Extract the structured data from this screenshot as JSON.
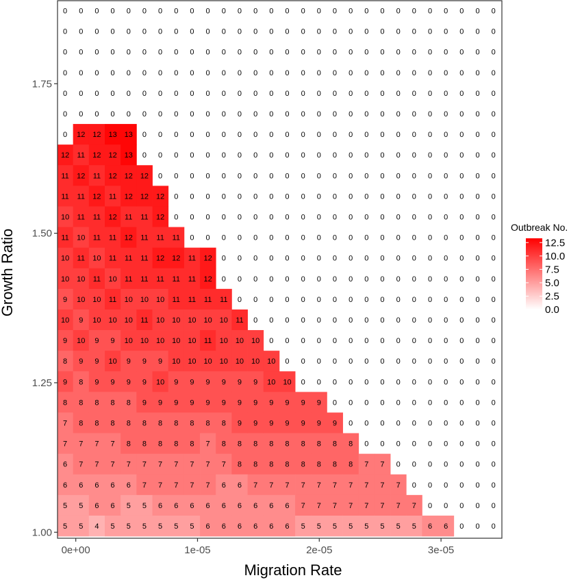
{
  "chart_data": {
    "type": "heatmap",
    "xlabel": "Migration Rate",
    "ylabel": "Growth Ratio",
    "x_ticks": [
      {
        "value": 0,
        "label": "0e+00"
      },
      {
        "value": 1e-05,
        "label": "1e-05"
      },
      {
        "value": 2e-05,
        "label": "2e-05"
      },
      {
        "value": 3e-05,
        "label": "3e-05"
      }
    ],
    "y_ticks": [
      {
        "value": 1.0,
        "label": "1.00"
      },
      {
        "value": 1.25,
        "label": "1.25"
      },
      {
        "value": 1.5,
        "label": "1.50"
      },
      {
        "value": 1.75,
        "label": "1.75"
      }
    ],
    "xlim": [
      -1.5e-06,
      3.5e-05
    ],
    "ylim": [
      0.99,
      1.89
    ],
    "x_values": [
      0,
      1.3e-06,
      2.6e-06,
      3.9e-06,
      5.2e-06,
      6.5e-06,
      7.8e-06,
      9.1e-06,
      1.04e-05,
      1.17e-05,
      1.3e-05,
      1.43e-05,
      1.56e-05,
      1.69e-05,
      1.82e-05,
      1.95e-05,
      2.08e-05,
      2.21e-05,
      2.34e-05,
      2.47e-05,
      2.6e-05,
      2.73e-05,
      2.86e-05,
      2.99e-05,
      3.12e-05,
      3.25e-05,
      3.38e-05,
      3.51e-05
    ],
    "y_values": [
      1.0,
      1.035,
      1.07,
      1.105,
      1.14,
      1.175,
      1.21,
      1.245,
      1.28,
      1.315,
      1.35,
      1.385,
      1.42,
      1.455,
      1.49,
      1.525,
      1.56,
      1.595,
      1.63,
      1.665,
      1.7,
      1.735,
      1.77,
      1.805,
      1.84,
      1.875
    ],
    "rows_top_to_bottom": [
      [
        0,
        0,
        0,
        0,
        0,
        0,
        0,
        0,
        0,
        0,
        0,
        0,
        0,
        0,
        0,
        0,
        0,
        0,
        0,
        0,
        0,
        0,
        0,
        0,
        0,
        0,
        0,
        0
      ],
      [
        0,
        0,
        0,
        0,
        0,
        0,
        0,
        0,
        0,
        0,
        0,
        0,
        0,
        0,
        0,
        0,
        0,
        0,
        0,
        0,
        0,
        0,
        0,
        0,
        0,
        0,
        0,
        0
      ],
      [
        0,
        0,
        0,
        0,
        0,
        0,
        0,
        0,
        0,
        0,
        0,
        0,
        0,
        0,
        0,
        0,
        0,
        0,
        0,
        0,
        0,
        0,
        0,
        0,
        0,
        0,
        0,
        0
      ],
      [
        0,
        0,
        0,
        0,
        0,
        0,
        0,
        0,
        0,
        0,
        0,
        0,
        0,
        0,
        0,
        0,
        0,
        0,
        0,
        0,
        0,
        0,
        0,
        0,
        0,
        0,
        0,
        0
      ],
      [
        0,
        0,
        0,
        0,
        0,
        0,
        0,
        0,
        0,
        0,
        0,
        0,
        0,
        0,
        0,
        0,
        0,
        0,
        0,
        0,
        0,
        0,
        0,
        0,
        0,
        0,
        0,
        0
      ],
      [
        0,
        0,
        0,
        0,
        0,
        0,
        0,
        0,
        0,
        0,
        0,
        0,
        0,
        0,
        0,
        0,
        0,
        0,
        0,
        0,
        0,
        0,
        0,
        0,
        0,
        0,
        0,
        0
      ],
      [
        0,
        12,
        12,
        13,
        13,
        0,
        0,
        0,
        0,
        0,
        0,
        0,
        0,
        0,
        0,
        0,
        0,
        0,
        0,
        0,
        0,
        0,
        0,
        0,
        0,
        0,
        0,
        0
      ],
      [
        12,
        11,
        12,
        12,
        13,
        0,
        0,
        0,
        0,
        0,
        0,
        0,
        0,
        0,
        0,
        0,
        0,
        0,
        0,
        0,
        0,
        0,
        0,
        0,
        0,
        0,
        0,
        0
      ],
      [
        11,
        12,
        11,
        12,
        12,
        12,
        0,
        0,
        0,
        0,
        0,
        0,
        0,
        0,
        0,
        0,
        0,
        0,
        0,
        0,
        0,
        0,
        0,
        0,
        0,
        0,
        0,
        0
      ],
      [
        11,
        11,
        12,
        11,
        12,
        12,
        12,
        0,
        0,
        0,
        0,
        0,
        0,
        0,
        0,
        0,
        0,
        0,
        0,
        0,
        0,
        0,
        0,
        0,
        0,
        0,
        0,
        0
      ],
      [
        10,
        11,
        11,
        12,
        11,
        11,
        12,
        0,
        0,
        0,
        0,
        0,
        0,
        0,
        0,
        0,
        0,
        0,
        0,
        0,
        0,
        0,
        0,
        0,
        0,
        0,
        0,
        0
      ],
      [
        11,
        10,
        11,
        11,
        12,
        11,
        11,
        11,
        0,
        0,
        0,
        0,
        0,
        0,
        0,
        0,
        0,
        0,
        0,
        0,
        0,
        0,
        0,
        0,
        0,
        0,
        0,
        0
      ],
      [
        10,
        11,
        10,
        11,
        11,
        11,
        12,
        12,
        11,
        12,
        0,
        0,
        0,
        0,
        0,
        0,
        0,
        0,
        0,
        0,
        0,
        0,
        0,
        0,
        0,
        0,
        0,
        0
      ],
      [
        10,
        10,
        11,
        10,
        11,
        11,
        11,
        11,
        11,
        12,
        0,
        0,
        0,
        0,
        0,
        0,
        0,
        0,
        0,
        0,
        0,
        0,
        0,
        0,
        0,
        0,
        0,
        0
      ],
      [
        9,
        10,
        10,
        11,
        10,
        10,
        10,
        11,
        11,
        11,
        11,
        0,
        0,
        0,
        0,
        0,
        0,
        0,
        0,
        0,
        0,
        0,
        0,
        0,
        0,
        0,
        0,
        0
      ],
      [
        10,
        9,
        10,
        10,
        10,
        11,
        10,
        10,
        10,
        10,
        10,
        11,
        0,
        0,
        0,
        0,
        0,
        0,
        0,
        0,
        0,
        0,
        0,
        0,
        0,
        0,
        0,
        0
      ],
      [
        9,
        10,
        9,
        9,
        10,
        10,
        10,
        10,
        10,
        11,
        10,
        10,
        10,
        0,
        0,
        0,
        0,
        0,
        0,
        0,
        0,
        0,
        0,
        0,
        0,
        0,
        0,
        0
      ],
      [
        8,
        9,
        9,
        10,
        9,
        9,
        9,
        10,
        10,
        10,
        10,
        10,
        10,
        10,
        0,
        0,
        0,
        0,
        0,
        0,
        0,
        0,
        0,
        0,
        0,
        0,
        0,
        0
      ],
      [
        9,
        8,
        9,
        9,
        9,
        9,
        10,
        9,
        9,
        9,
        9,
        9,
        9,
        10,
        10,
        0,
        0,
        0,
        0,
        0,
        0,
        0,
        0,
        0,
        0,
        0,
        0,
        0
      ],
      [
        8,
        8,
        8,
        8,
        8,
        9,
        9,
        9,
        9,
        9,
        9,
        9,
        9,
        9,
        9,
        9,
        9,
        0,
        0,
        0,
        0,
        0,
        0,
        0,
        0,
        0,
        0,
        0
      ],
      [
        7,
        8,
        8,
        8,
        8,
        8,
        8,
        8,
        8,
        8,
        8,
        9,
        9,
        9,
        9,
        9,
        9,
        9,
        0,
        0,
        0,
        0,
        0,
        0,
        0,
        0,
        0,
        0
      ],
      [
        7,
        7,
        7,
        7,
        8,
        8,
        8,
        8,
        8,
        7,
        8,
        8,
        8,
        8,
        8,
        8,
        8,
        8,
        8,
        0,
        0,
        0,
        0,
        0,
        0,
        0,
        0,
        0
      ],
      [
        6,
        7,
        7,
        7,
        7,
        7,
        7,
        7,
        7,
        7,
        7,
        8,
        8,
        8,
        8,
        8,
        8,
        8,
        8,
        7,
        7,
        0,
        0,
        0,
        0,
        0,
        0,
        0
      ],
      [
        6,
        6,
        6,
        6,
        6,
        7,
        7,
        7,
        7,
        7,
        6,
        6,
        7,
        7,
        7,
        7,
        7,
        7,
        7,
        7,
        7,
        7,
        0,
        0,
        0,
        0,
        0,
        0
      ],
      [
        5,
        5,
        6,
        6,
        5,
        5,
        6,
        6,
        6,
        6,
        6,
        6,
        6,
        6,
        6,
        7,
        7,
        7,
        7,
        7,
        7,
        7,
        7,
        0,
        0,
        0,
        0,
        0
      ],
      [
        5,
        5,
        4,
        5,
        5,
        5,
        5,
        5,
        5,
        6,
        6,
        6,
        6,
        6,
        6,
        5,
        5,
        5,
        5,
        5,
        5,
        5,
        5,
        6,
        6,
        0,
        0,
        0
      ]
    ],
    "color_scale": {
      "low": "#ffffff",
      "high": "#ff0000",
      "domain": [
        0,
        13.3
      ]
    },
    "legend": {
      "title": "Outbreak No.",
      "position": "right",
      "ticks": [
        {
          "value": 12.5,
          "label": "12.5"
        },
        {
          "value": 10.0,
          "label": "10.0"
        },
        {
          "value": 7.5,
          "label": "7.5"
        },
        {
          "value": 5.0,
          "label": "5.0"
        },
        {
          "value": 2.5,
          "label": "2.5"
        },
        {
          "value": 0.0,
          "label": "0.0"
        }
      ]
    },
    "grid": false,
    "panel_border": "#333333",
    "axis_tick_color": "#333333"
  }
}
